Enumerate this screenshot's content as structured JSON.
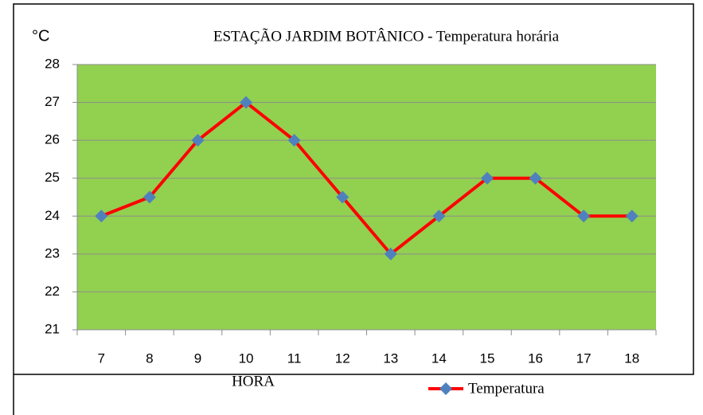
{
  "chart_data": {
    "type": "line",
    "title": "ESTAÇÃO JARDIM BOTÂNICO - Temperatura horária",
    "y_label": "°C",
    "x_label": "HORA",
    "categories": [
      "7",
      "8",
      "9",
      "10",
      "11",
      "12",
      "13",
      "14",
      "15",
      "16",
      "17",
      "18"
    ],
    "series": [
      {
        "name": "Temperatura",
        "color": "#ff0000",
        "marker_color": "#4f81bd",
        "values": [
          24,
          24.5,
          26,
          27,
          26,
          24.5,
          23,
          24,
          25,
          25,
          24,
          24
        ]
      }
    ],
    "ylim": [
      21,
      28
    ],
    "yticks": [
      21,
      22,
      23,
      24,
      25,
      26,
      27,
      28
    ],
    "grid": true,
    "plot_background": "#92d050"
  }
}
